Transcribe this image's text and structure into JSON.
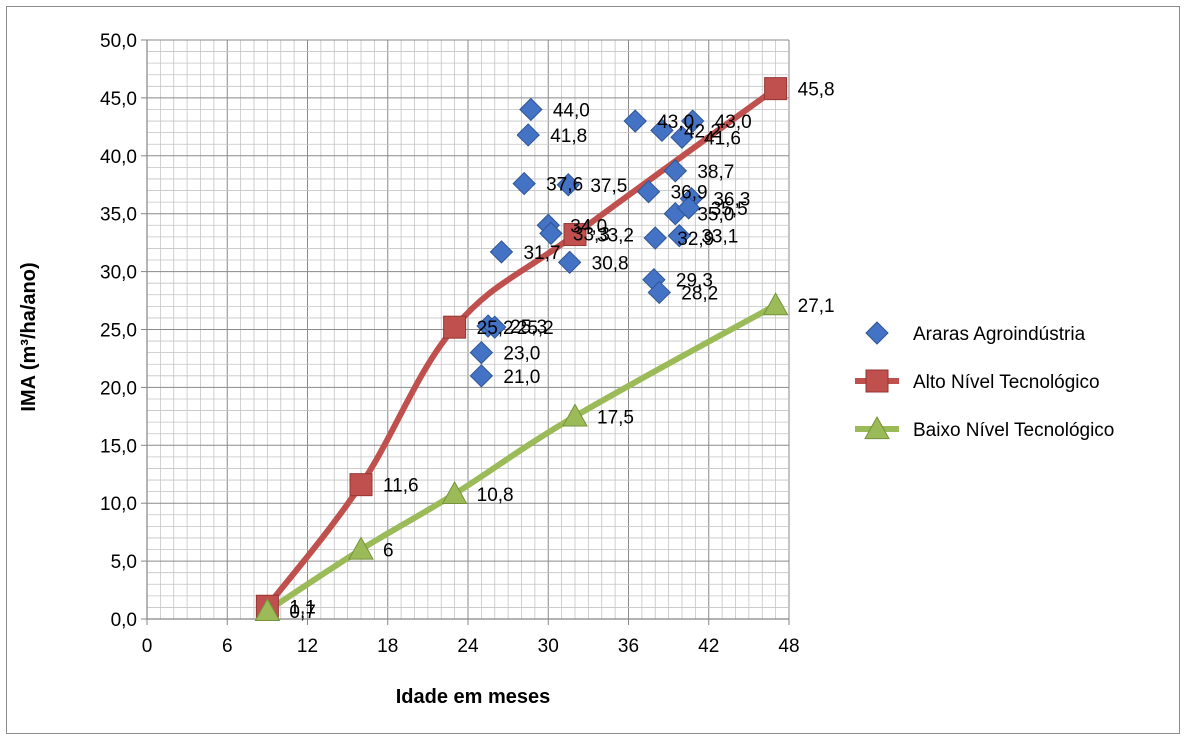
{
  "chart_data": {
    "type": "scatter",
    "title": "",
    "xlabel": "Idade em meses",
    "ylabel": "IMA (m³/ha/ano)",
    "xlim": [
      0,
      48
    ],
    "ylim": [
      0,
      50
    ],
    "xticks": [
      "0",
      "6",
      "12",
      "18",
      "24",
      "30",
      "36",
      "42",
      "48"
    ],
    "yticks": [
      "0,0",
      "5,0",
      "10,0",
      "15,0",
      "20,0",
      "25,0",
      "30,0",
      "35,0",
      "40,0",
      "45,0",
      "50,0"
    ],
    "grid": true,
    "legend_position": "right",
    "series": [
      {
        "name": "Araras Agroindústria",
        "kind": "scatter",
        "marker": "diamond",
        "color": "#4472C4",
        "points": [
          {
            "x": 28.7,
            "y": 44.0,
            "label": "44,0"
          },
          {
            "x": 28.5,
            "y": 41.8,
            "label": "41,8"
          },
          {
            "x": 28.2,
            "y": 37.6,
            "label": "37,6"
          },
          {
            "x": 31.5,
            "y": 37.5,
            "label": "37,5"
          },
          {
            "x": 30.0,
            "y": 34.0,
            "label": "34,0"
          },
          {
            "x": 30.2,
            "y": 33.3,
            "label": "33,3"
          },
          {
            "x": 31.6,
            "y": 30.8,
            "label": "30,8"
          },
          {
            "x": 26.5,
            "y": 31.7,
            "label": "31,7"
          },
          {
            "x": 36.5,
            "y": 43.0,
            "label": "43,0"
          },
          {
            "x": 40.8,
            "y": 43.0,
            "label": "43,0"
          },
          {
            "x": 38.5,
            "y": 42.2,
            "label": "42,2"
          },
          {
            "x": 40.0,
            "y": 41.6,
            "label": "41,6"
          },
          {
            "x": 39.5,
            "y": 38.7,
            "label": "38,7"
          },
          {
            "x": 37.5,
            "y": 36.9,
            "label": "36,9"
          },
          {
            "x": 40.7,
            "y": 36.3,
            "label": "36,3"
          },
          {
            "x": 39.5,
            "y": 35.0,
            "label": "35,0"
          },
          {
            "x": 40.5,
            "y": 35.5,
            "label": "35,5"
          },
          {
            "x": 38.0,
            "y": 32.9,
            "label": "32,9"
          },
          {
            "x": 39.8,
            "y": 33.1,
            "label": "33,1"
          },
          {
            "x": 37.9,
            "y": 29.3,
            "label": "29,3"
          },
          {
            "x": 38.3,
            "y": 28.2,
            "label": "28,2"
          },
          {
            "x": 25.5,
            "y": 25.3,
            "label": "25,3"
          },
          {
            "x": 26.0,
            "y": 25.2,
            "label": "25,2"
          },
          {
            "x": 25.0,
            "y": 23.0,
            "label": "23,0"
          },
          {
            "x": 25.0,
            "y": 21.0,
            "label": "21,0"
          }
        ]
      },
      {
        "name": "Alto Nível Tecnológico",
        "kind": "line",
        "marker": "square",
        "color": "#C0504D",
        "points": [
          {
            "x": 9,
            "y": 1.1,
            "label": "1,1"
          },
          {
            "x": 16,
            "y": 11.6,
            "label": "11,6"
          },
          {
            "x": 23,
            "y": 25.2,
            "label": "25,2"
          },
          {
            "x": 32,
            "y": 33.2,
            "label": "33,2"
          },
          {
            "x": 47,
            "y": 45.8,
            "label": "45,8"
          }
        ]
      },
      {
        "name": "Baixo Nível Tecnológico",
        "kind": "line",
        "marker": "triangle",
        "color": "#9BBB59",
        "points": [
          {
            "x": 9,
            "y": 0.7,
            "label": "0,7"
          },
          {
            "x": 16,
            "y": 6,
            "label": "6"
          },
          {
            "x": 23,
            "y": 10.8,
            "label": "10,8"
          },
          {
            "x": 32,
            "y": 17.5,
            "label": "17,5"
          },
          {
            "x": 47,
            "y": 27.1,
            "label": "27,1"
          }
        ]
      }
    ]
  }
}
